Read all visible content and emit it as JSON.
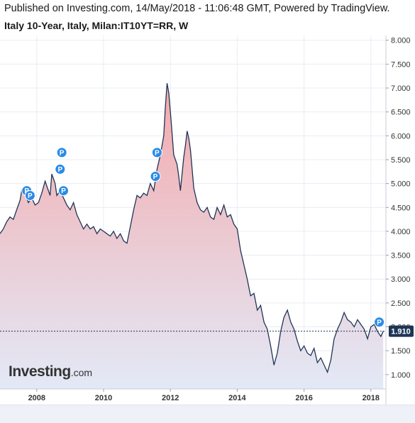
{
  "header": {
    "published": "Published on Investing.com, 14/May/2018 - 11:06:48 GMT, Powered by TradingView.",
    "symbol": "Italy 10-Year, Italy, Milan:IT10YT=RR, W"
  },
  "logo": {
    "name": "Investing",
    "suffix": ".com"
  },
  "colors": {
    "line": "#1f3556",
    "fill_top": "#f4a9ab",
    "fill_bottom": "#e3e9f7",
    "badge": "#2b8be6",
    "grid": "#e9ecf2"
  },
  "chart_data": {
    "type": "area",
    "x_tick_labels": [
      "2008",
      "2010",
      "2012",
      "2014",
      "2016",
      "2018"
    ],
    "y_tick_labels": [
      "1.000",
      "1.500",
      "2.000",
      "2.500",
      "3.000",
      "3.500",
      "4.000",
      "4.500",
      "5.000",
      "5.500",
      "6.000",
      "6.500",
      "7.000",
      "7.500",
      "8.000"
    ],
    "xlim": [
      2006.9,
      2018.45
    ],
    "ylim": [
      0.7,
      8.1
    ],
    "grid": true,
    "last_value": 1.91,
    "last_value_label": "1.910",
    "badge_label": "P",
    "badges": [
      {
        "x": 2007.7,
        "y": 4.85
      },
      {
        "x": 2007.8,
        "y": 4.75
      },
      {
        "x": 2008.75,
        "y": 5.65
      },
      {
        "x": 2008.7,
        "y": 5.3
      },
      {
        "x": 2008.8,
        "y": 4.85
      },
      {
        "x": 2011.55,
        "y": 5.15
      },
      {
        "x": 2011.6,
        "y": 5.65
      },
      {
        "x": 2018.25,
        "y": 2.1
      }
    ],
    "series": [
      {
        "x": [
          2006.9,
          2007.0,
          2007.1,
          2007.2,
          2007.3,
          2007.4,
          2007.5,
          2007.55,
          2007.65,
          2007.75,
          2007.85,
          2007.95,
          2008.05,
          2008.15,
          2008.25,
          2008.4,
          2008.45,
          2008.5,
          2008.55,
          2008.6,
          2008.7,
          2008.8,
          2008.9,
          2009.0,
          2009.1,
          2009.2,
          2009.3,
          2009.4,
          2009.5,
          2009.6,
          2009.7,
          2009.8,
          2009.9,
          2010.0,
          2010.1,
          2010.2,
          2010.3,
          2010.4,
          2010.5,
          2010.6,
          2010.7,
          2010.8,
          2010.9,
          2011.0,
          2011.1,
          2011.2,
          2011.3,
          2011.4,
          2011.5,
          2011.6,
          2011.7,
          2011.8,
          2011.85,
          2011.9,
          2011.95,
          2012.0,
          2012.1,
          2012.2,
          2012.25,
          2012.3,
          2012.4,
          2012.45,
          2012.5,
          2012.55,
          2012.6,
          2012.7,
          2012.8,
          2012.9,
          2013.0,
          2013.1,
          2013.2,
          2013.3,
          2013.4,
          2013.5,
          2013.6,
          2013.7,
          2013.8,
          2013.9,
          2014.0,
          2014.1,
          2014.2,
          2014.3,
          2014.4,
          2014.5,
          2014.6,
          2014.7,
          2014.8,
          2014.9,
          2015.0,
          2015.1,
          2015.2,
          2015.3,
          2015.4,
          2015.5,
          2015.6,
          2015.7,
          2015.8,
          2015.9,
          2016.0,
          2016.1,
          2016.2,
          2016.3,
          2016.4,
          2016.5,
          2016.6,
          2016.7,
          2016.8,
          2016.9,
          2017.0,
          2017.1,
          2017.2,
          2017.3,
          2017.4,
          2017.5,
          2017.6,
          2017.7,
          2017.8,
          2017.9,
          2018.0,
          2018.1,
          2018.2,
          2018.3,
          2018.37
        ],
        "y": [
          3.95,
          4.05,
          4.2,
          4.3,
          4.25,
          4.45,
          4.65,
          4.85,
          4.8,
          4.6,
          4.7,
          4.55,
          4.6,
          4.8,
          5.05,
          4.75,
          5.2,
          5.1,
          5.0,
          4.75,
          4.85,
          4.7,
          4.55,
          4.45,
          4.6,
          4.35,
          4.2,
          4.05,
          4.15,
          4.05,
          4.1,
          3.95,
          4.05,
          4.0,
          3.95,
          3.9,
          4.0,
          3.85,
          3.95,
          3.8,
          3.75,
          4.1,
          4.45,
          4.75,
          4.7,
          4.8,
          4.75,
          5.0,
          4.85,
          5.3,
          5.6,
          6.0,
          6.6,
          7.1,
          6.9,
          6.5,
          5.6,
          5.4,
          5.15,
          4.85,
          5.55,
          5.8,
          6.1,
          5.95,
          5.7,
          4.9,
          4.6,
          4.45,
          4.4,
          4.5,
          4.3,
          4.25,
          4.5,
          4.35,
          4.55,
          4.3,
          4.35,
          4.15,
          4.05,
          3.6,
          3.3,
          3.0,
          2.65,
          2.7,
          2.35,
          2.45,
          2.1,
          1.95,
          1.6,
          1.2,
          1.45,
          1.9,
          2.2,
          2.35,
          2.1,
          1.95,
          1.7,
          1.5,
          1.6,
          1.45,
          1.4,
          1.55,
          1.25,
          1.35,
          1.2,
          1.05,
          1.3,
          1.75,
          1.95,
          2.1,
          2.3,
          2.15,
          2.1,
          2.0,
          2.15,
          2.05,
          1.95,
          1.75,
          2.0,
          2.05,
          1.9,
          1.8,
          1.91
        ]
      }
    ]
  }
}
